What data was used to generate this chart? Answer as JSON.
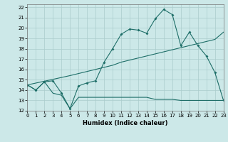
{
  "xlabel": "Humidex (Indice chaleur)",
  "xlim": [
    0,
    23
  ],
  "ylim": [
    12,
    22.3
  ],
  "yticks": [
    12,
    13,
    14,
    15,
    16,
    17,
    18,
    19,
    20,
    21,
    22
  ],
  "xticks": [
    0,
    1,
    2,
    3,
    4,
    5,
    6,
    7,
    8,
    9,
    10,
    11,
    12,
    13,
    14,
    15,
    16,
    17,
    18,
    19,
    20,
    21,
    22,
    23
  ],
  "bg_color": "#cce8e8",
  "grid_color": "#aacccc",
  "line_color": "#1e6e68",
  "line1_x": [
    0,
    1,
    2,
    3,
    4,
    5,
    6,
    7,
    8,
    9,
    10,
    11,
    12,
    13,
    14,
    15,
    16,
    17,
    18,
    19,
    20,
    21,
    22,
    23
  ],
  "line1_y": [
    14.5,
    14.0,
    14.8,
    14.9,
    13.7,
    12.2,
    14.4,
    14.7,
    14.9,
    16.7,
    18.0,
    19.4,
    19.9,
    19.8,
    19.5,
    20.9,
    21.8,
    21.3,
    18.3,
    19.6,
    18.3,
    17.3,
    15.7,
    13.0
  ],
  "line2_x": [
    0,
    5,
    6,
    7,
    8,
    9,
    10,
    11,
    12,
    13,
    14,
    15,
    16,
    17,
    18,
    19,
    20,
    21,
    22,
    23
  ],
  "line2_y": [
    14.5,
    15.4,
    15.6,
    15.8,
    16.0,
    16.2,
    16.4,
    16.7,
    16.9,
    17.1,
    17.3,
    17.5,
    17.7,
    17.9,
    18.1,
    18.3,
    18.5,
    18.7,
    18.9,
    19.6
  ],
  "line3_x": [
    0,
    1,
    2,
    3,
    4,
    5,
    6,
    7,
    8,
    9,
    10,
    11,
    12,
    13,
    14,
    15,
    16,
    17,
    18,
    19,
    20,
    21,
    22,
    23
  ],
  "line3_y": [
    14.5,
    14.0,
    14.8,
    13.7,
    13.5,
    12.2,
    13.3,
    13.3,
    13.3,
    13.3,
    13.3,
    13.3,
    13.3,
    13.3,
    13.3,
    13.1,
    13.1,
    13.1,
    13.0,
    13.0,
    13.0,
    13.0,
    13.0,
    13.0
  ]
}
